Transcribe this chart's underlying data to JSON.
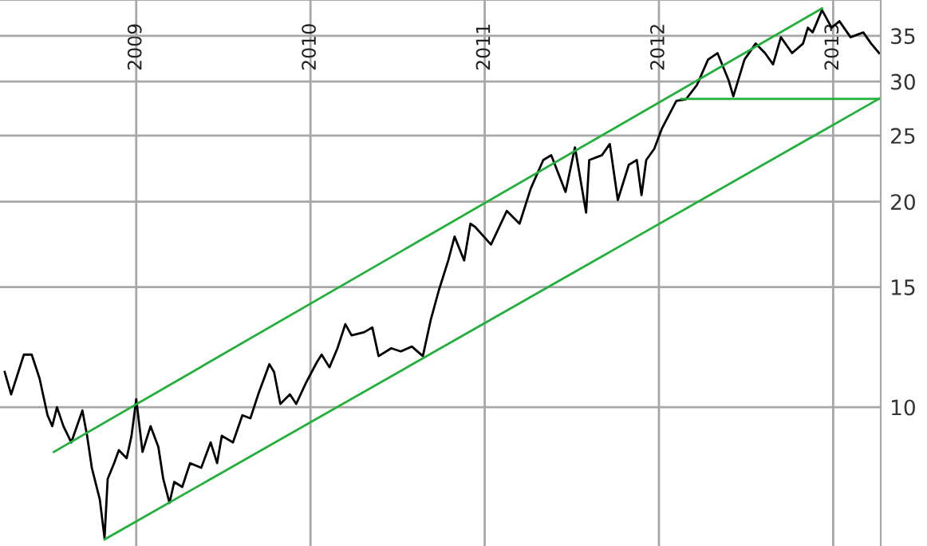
{
  "chart_data": {
    "type": "line",
    "log": "y",
    "grid": true,
    "xlim": [
      2008.218,
      2013.273
    ],
    "ylim": [
      6.26,
      39.5
    ],
    "xticks": [
      {
        "value": 2009,
        "label": "2009"
      },
      {
        "value": 2010,
        "label": "2010"
      },
      {
        "value": 2011,
        "label": "2011"
      },
      {
        "value": 2012,
        "label": "2012"
      },
      {
        "value": 2013,
        "label": "2013"
      }
    ],
    "yticks": [
      10,
      15,
      20,
      25,
      30,
      35
    ],
    "series": [
      {
        "color": "#000000",
        "x": [
          2008.245,
          2008.282,
          2008.355,
          2008.4,
          2008.445,
          2008.491,
          2008.518,
          2008.545,
          2008.582,
          2008.627,
          2008.691,
          2008.718,
          2008.745,
          2008.791,
          2008.818,
          2008.836,
          2008.873,
          2008.9,
          2008.945,
          2008.973,
          2009.0,
          2009.036,
          2009.082,
          2009.127,
          2009.155,
          2009.191,
          2009.218,
          2009.264,
          2009.309,
          2009.373,
          2009.427,
          2009.464,
          2009.491,
          2009.555,
          2009.609,
          2009.655,
          2009.7,
          2009.764,
          2009.791,
          2009.827,
          2009.882,
          2009.918,
          2009.973,
          2010.036,
          2010.064,
          2010.109,
          2010.155,
          2010.2,
          2010.236,
          2010.309,
          2010.355,
          2010.391,
          2010.464,
          2010.518,
          2010.582,
          2010.645,
          2010.691,
          2010.736,
          2010.791,
          2010.827,
          2010.882,
          2010.918,
          2010.945,
          2011.036,
          2011.127,
          2011.2,
          2011.264,
          2011.336,
          2011.382,
          2011.464,
          2011.518,
          2011.582,
          2011.6,
          2011.673,
          2011.718,
          2011.764,
          2011.827,
          2011.873,
          2011.9,
          2011.927,
          2011.973,
          2012.018,
          2012.1,
          2012.155,
          2012.218,
          2012.282,
          2012.336,
          2012.4,
          2012.427,
          2012.491,
          2012.555,
          2012.609,
          2012.655,
          2012.7,
          2012.764,
          2012.827,
          2012.855,
          2012.882,
          2012.936,
          2012.991,
          2013.036,
          2013.1,
          2013.173,
          2013.218,
          2013.264
        ],
        "values": [
          11.26,
          10.44,
          11.94,
          11.94,
          11.02,
          9.73,
          9.38,
          10.0,
          9.38,
          8.88,
          9.89,
          9.08,
          8.15,
          7.32,
          6.43,
          7.85,
          8.28,
          8.65,
          8.42,
          9.08,
          10.27,
          8.6,
          9.38,
          8.74,
          7.85,
          7.24,
          7.77,
          7.64,
          8.28,
          8.15,
          8.88,
          8.28,
          9.08,
          8.88,
          9.73,
          9.63,
          10.44,
          11.56,
          11.26,
          10.11,
          10.44,
          10.11,
          10.84,
          11.63,
          11.94,
          11.44,
          12.2,
          13.23,
          12.74,
          12.88,
          13.09,
          11.88,
          12.2,
          12.07,
          12.27,
          11.88,
          13.45,
          14.81,
          16.41,
          17.78,
          16.41,
          18.57,
          18.37,
          17.31,
          19.39,
          18.57,
          20.9,
          23.02,
          23.4,
          20.67,
          24.03,
          19.28,
          23.02,
          23.4,
          24.3,
          20.12,
          22.65,
          23.02,
          20.45,
          23.02,
          23.9,
          25.63,
          28.1,
          28.25,
          29.65,
          32.31,
          33.02,
          30.13,
          28.55,
          32.31,
          34.1,
          33.02,
          31.79,
          34.84,
          33.02,
          34.1,
          35.98,
          35.41,
          38.18,
          35.98,
          36.77,
          34.84,
          35.41,
          34.1,
          33.02
        ]
      },
      {
        "color": "#22b03a",
        "x": [
          2008.527,
          2012.936
        ],
        "values": [
          8.6,
          38.4
        ]
      },
      {
        "color": "#22b03a",
        "x": [
          2008.818,
          2013.273
        ],
        "values": [
          6.4,
          28.4
        ]
      },
      {
        "color": "#22b03a",
        "x": [
          2012.127,
          2013.273
        ],
        "values": [
          28.3,
          28.3
        ]
      }
    ]
  }
}
